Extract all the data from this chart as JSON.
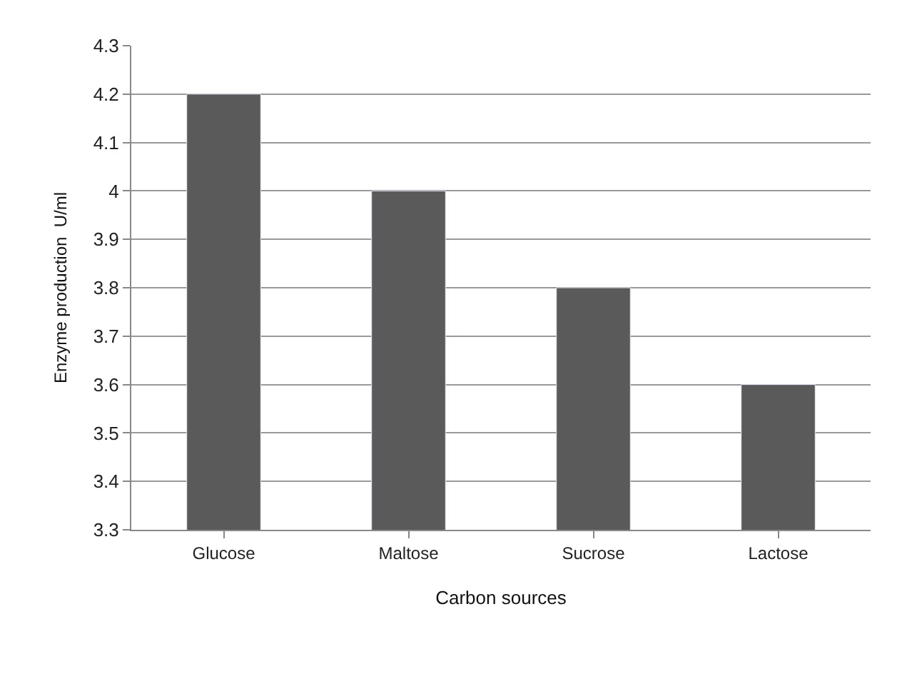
{
  "chart_data": {
    "type": "bar",
    "xlabel": "Carbon sources",
    "ylabel": "Enzyme production  U/ml",
    "categories": [
      "Glucose",
      "Maltose",
      "Sucrose",
      "Lactose"
    ],
    "values": [
      4.2,
      4.0,
      3.8,
      3.6
    ],
    "color": "#5a5a5a",
    "ylim": [
      3.3,
      4.3
    ],
    "yticks": [
      3.3,
      3.4,
      3.5,
      3.6,
      3.7,
      3.8,
      3.9,
      4,
      4.1,
      4.2,
      4.3
    ],
    "grid": "y"
  }
}
